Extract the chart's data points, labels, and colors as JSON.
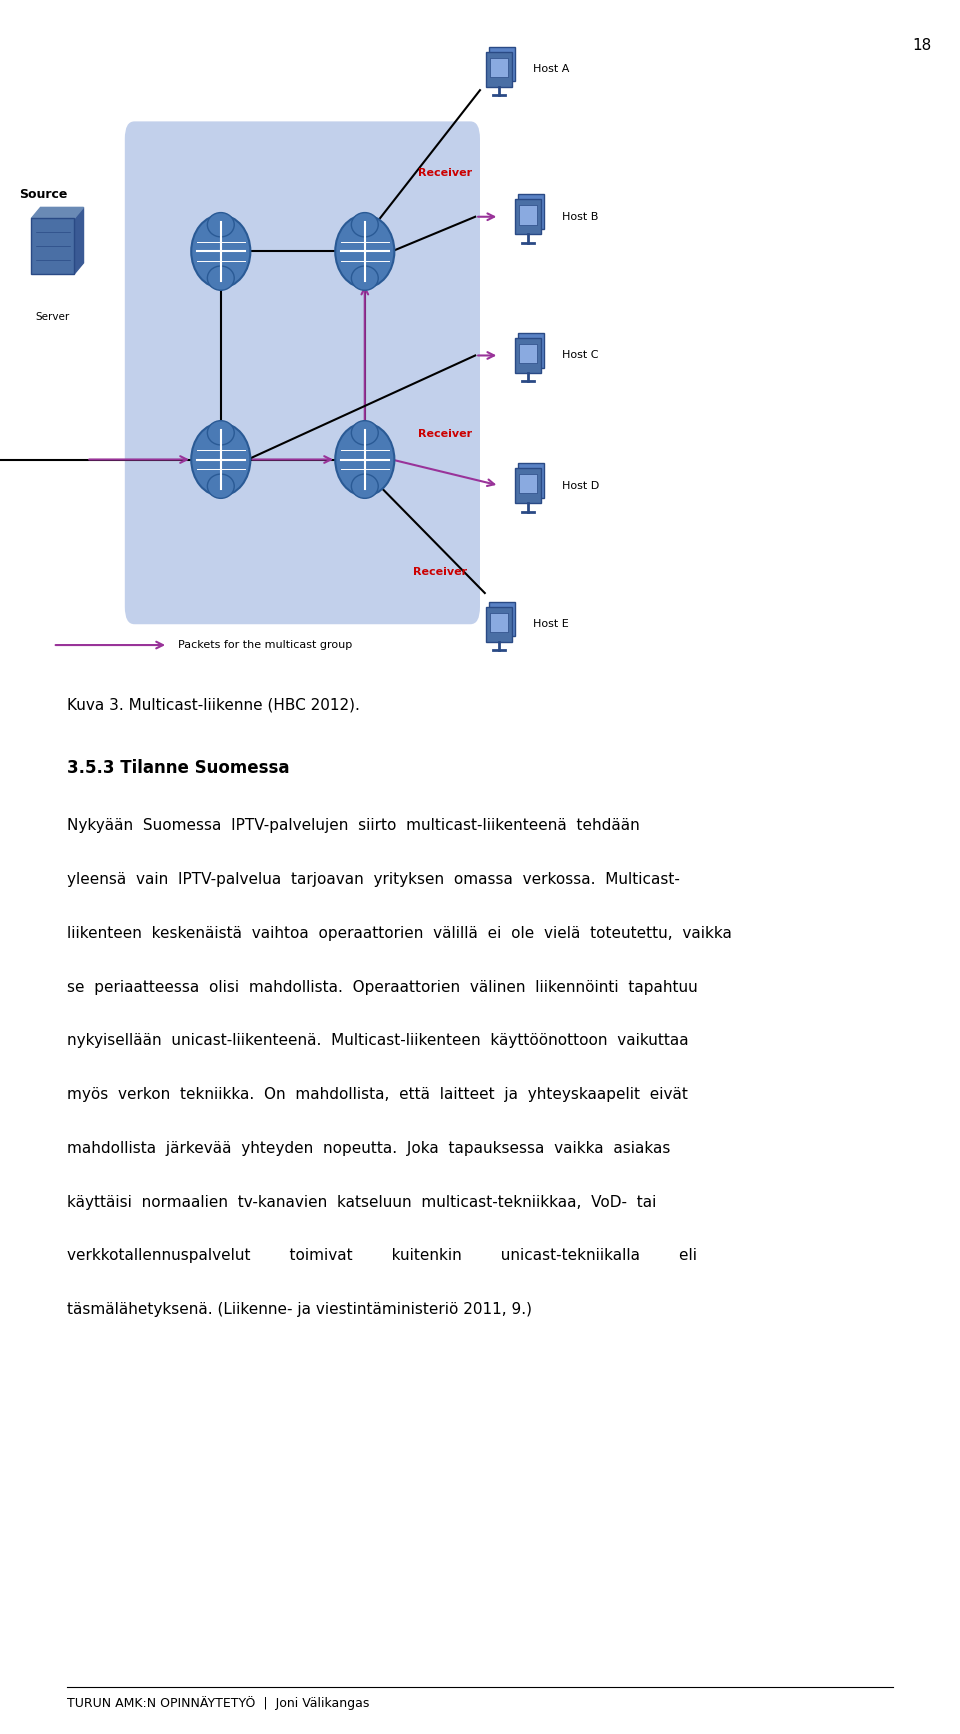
{
  "page_number": "18",
  "caption": "Kuva 3. Multicast-liikenne (HBC 2012).",
  "section_title": "3.5.3 Tilanne Suomessa",
  "paragraph1": "Nykyään Suomessa IPTV-palvelujen siirto multicast-liikenteenä tehdään yleensä vain IPTV-palvelua tarjoavan yrityksen omassa verkossa. Multicast-liikenteen keskenäistä vaihtoa operaattorien välillä ei ole vielä toteutettu, vaikka se periaatteessa olisi mahdollista. Operaattorien välinen liikennöinti tapahtuu nykyisellään unicast-liikenteenä. Multicast-liikenteen käyttöönottoon vaikuttaa myös verkon tekniikka. On mahdollista, että laitteet ja yhteyskaapelit eivät mahdollista järkevää yhteyden nopeutta. Joka tapauksessa vaikka asiakas käyttäisi normaalien tv-kanavien katseluun multicast-tekniikkaa, VoD- tai verkkotallennuspalvelut toimivat kuitenkin unicast-tekniikalla eli täsmälähetyksenä. (Liikenne- ja viestintäministeriö 2011, 9.)",
  "footer": "TURUN AMK:N OPINNÄYTETYÖ  |  Joni Välikangas",
  "bg_color": "#ffffff",
  "text_color": "#000000",
  "font_size_body": 11,
  "font_size_caption": 11,
  "font_size_section": 12,
  "font_size_page": 11,
  "font_size_footer": 9,
  "router_color": "#4a6fa5",
  "router_edge_color": "#2a4f85",
  "network_bg_color": "#b8c8e8",
  "arrow_color_magenta": "#993399",
  "arrow_color_black": "#000000",
  "host_color": "#4a6fa5",
  "receiver_label_color": "#cc0000",
  "body_lines": [
    "Nykyään  Suomessa  IPTV-palvelujen  siirto  multicast-liikenteenä  tehdään",
    "yleensä  vain  IPTV-palvelua  tarjoavan  yrityksen  omassa  verkossa.  Multicast-",
    "liikenteen  keskenäistä  vaihtoa  operaattorien  välillä  ei  ole  vielä  toteutettu,  vaikka",
    "se  periaatteessa  olisi  mahdollista.  Operaattorien  välinen  liikennöinti  tapahtuu",
    "nykyisellään  unicast-liikenteenä.  Multicast-liikenteen  käyttöönottoon  vaikuttaa",
    "myös  verkon  tekniikka.  On  mahdollista,  että  laitteet  ja  yhteyskaapelit  eivät",
    "mahdollista  järkevää  yhteyden  nopeutta.  Joka  tapauksessa  vaikka  asiakas",
    "käyttäisi  normaalien  tv-kanavien  katseluun  multicast-tekniikkaa,  VoD-  tai",
    "verkkotallennuspalvelut        toimivat        kuitenkin        unicast-tekniikalla        eli",
    "täsmälähetyksenä. (Liikenne- ja viestintäministeriö 2011, 9.)"
  ]
}
